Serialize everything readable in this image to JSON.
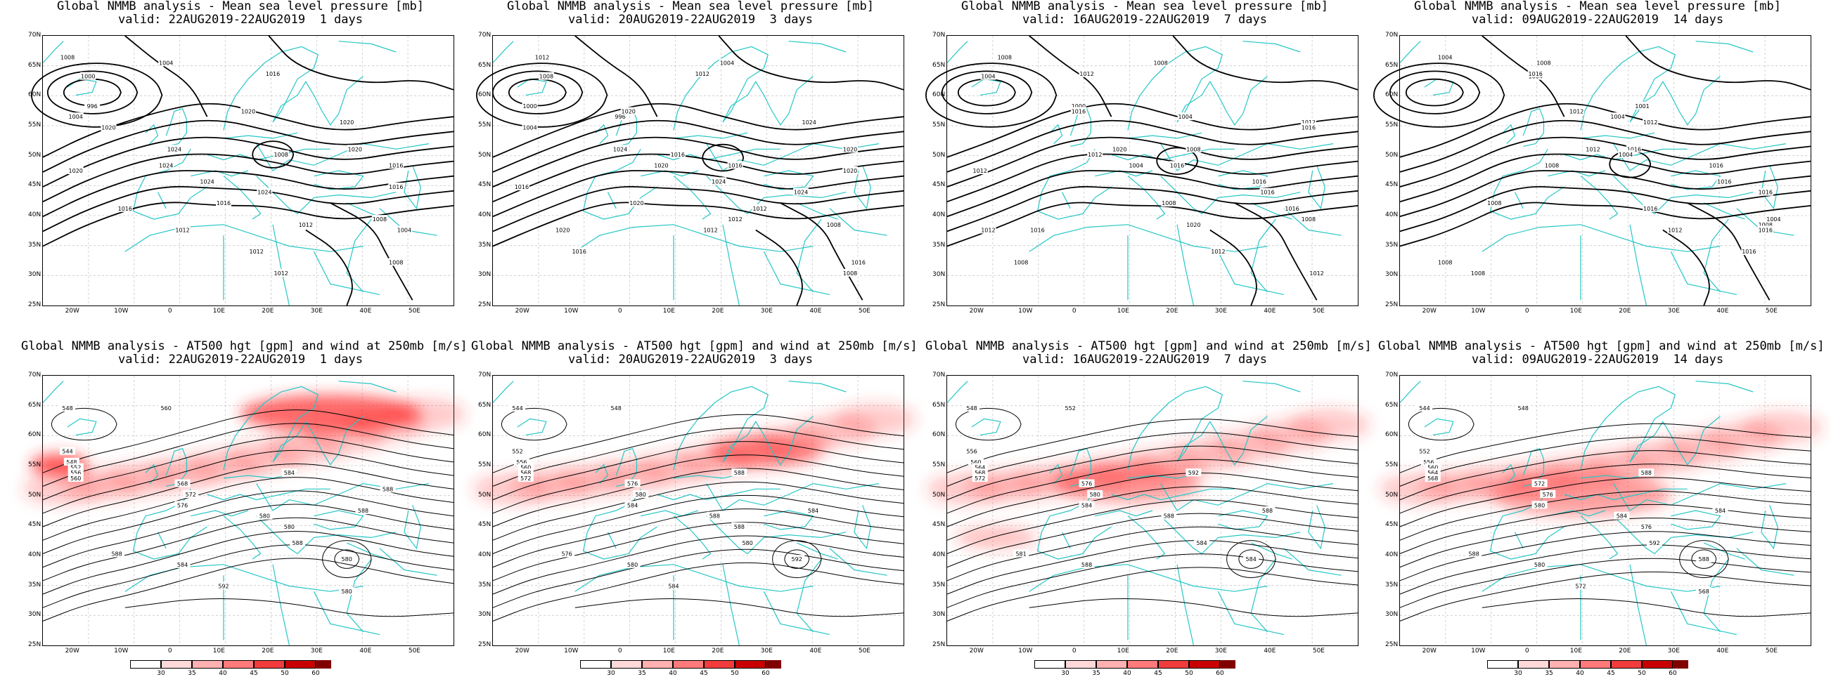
{
  "rows": [
    {
      "kind": "mslp",
      "panels": [
        {
          "title1": "Global NMMB analysis - Mean sea level pressure [mb]",
          "title2": "valid: 22AUG2019-22AUG2019  1 days",
          "labels": [
            "1008",
            "1000",
            "996",
            "1004",
            "1004",
            "1016",
            "1020",
            "1024",
            "1024",
            "1024",
            "1024",
            "1020",
            "1020",
            "1016",
            "1008",
            "1016",
            "1012",
            "1012",
            "1016",
            "1012",
            "1008",
            "1012",
            "1008",
            "1004",
            "1020",
            "1020",
            "1016"
          ]
        },
        {
          "title1": "Global NMMB analysis - Mean sea level pressure [mb]",
          "title2": "valid: 20AUG2019-22AUG2019  3 days",
          "labels": [
            "1012",
            "1008",
            "1000",
            "996",
            "1004",
            "1012",
            "1020",
            "1024",
            "1020",
            "1024",
            "1024",
            "1024",
            "1020",
            "1016",
            "1016",
            "1020",
            "1012",
            "1016",
            "1012",
            "1008",
            "1012",
            "1008",
            "1016",
            "1020",
            "1004",
            "1020",
            "1016"
          ]
        },
        {
          "title1": "Global NMMB analysis - Mean sea level pressure [mb]",
          "title2": "valid: 16AUG2019-22AUG2019  7 days",
          "labels": [
            "1008",
            "1004",
            "1000",
            "1004",
            "1008",
            "1012",
            "1016",
            "1020",
            "1016",
            "1016",
            "1016",
            "1012",
            "1008",
            "1004",
            "1012",
            "1008",
            "1016",
            "1012",
            "1016",
            "1020",
            "1008",
            "1012",
            "1008",
            "1012",
            "1016",
            "1012"
          ]
        },
        {
          "title1": "Global NMMB analysis - Mean sea level pressure [mb]",
          "title2": "valid: 09AUG2019-22AUG2019  14 days",
          "labels": [
            "1004",
            "1004",
            "1001",
            "1004",
            "1008",
            "1016",
            "1012",
            "1016",
            "1016",
            "1016",
            "1016",
            "1012",
            "1012",
            "1008",
            "1004",
            "1008",
            "1012",
            "1016",
            "1016",
            "1008",
            "1004",
            "1008",
            "1008",
            "1016"
          ]
        }
      ]
    },
    {
      "kind": "at500",
      "panels": [
        {
          "title1": "Global NMMB analysis - AT500 hgt [gpm] and wind at 250mb [m/s]",
          "title2": "valid: 22AUG2019-22AUG2019  1 days",
          "labels": [
            "548",
            "560",
            "544",
            "548",
            "552",
            "556",
            "560",
            "568",
            "572",
            "576",
            "580",
            "584",
            "588",
            "588",
            "580",
            "584",
            "588",
            "592",
            "580",
            "580",
            "588"
          ]
        },
        {
          "title1": "Global NMMB analysis - AT500 hgt [gpm] and wind at 250mb [m/s]",
          "title2": "valid: 20AUG2019-22AUG2019  3 days",
          "labels": [
            "544",
            "548",
            "552",
            "556",
            "560",
            "568",
            "572",
            "576",
            "580",
            "584",
            "588",
            "588",
            "580",
            "584",
            "592",
            "580",
            "576",
            "584",
            "588"
          ]
        },
        {
          "title1": "Global NMMB analysis - AT500 hgt [gpm] and wind at 250mb [m/s]",
          "title2": "valid: 16AUG2019-22AUG2019  7 days",
          "labels": [
            "548",
            "552",
            "556",
            "560",
            "564",
            "568",
            "572",
            "576",
            "580",
            "584",
            "588",
            "592",
            "584",
            "588",
            "584",
            "588",
            "581"
          ]
        },
        {
          "title1": "Global NMMB analysis - AT500 hgt [gpm] and wind at 250mb [m/s]",
          "title2": "valid: 09AUG2019-22AUG2019  14 days",
          "labels": [
            "544",
            "548",
            "552",
            "556",
            "560",
            "564",
            "568",
            "572",
            "576",
            "580",
            "584",
            "588",
            "592",
            "584",
            "588",
            "580",
            "588",
            "572",
            "576",
            "568"
          ]
        }
      ]
    }
  ],
  "lat_ticks": [
    "70N",
    "65N",
    "60N",
    "55N",
    "50N",
    "45N",
    "40N",
    "35N",
    "30N",
    "25N"
  ],
  "lon_ticks": [
    "20W",
    "10W",
    "0",
    "10E",
    "20E",
    "30E",
    "40E",
    "50E"
  ],
  "colorbar": {
    "labels": [
      "30",
      "35",
      "40",
      "45",
      "50",
      "60"
    ],
    "colors": [
      "#ffffff",
      "#ffd9d9",
      "#ffb0b0",
      "#ff7a7a",
      "#f03c3c",
      "#c80000",
      "#800000"
    ]
  },
  "colors": {
    "coast": "#26c6c6",
    "isobar": "#000000",
    "jet": "#ff2a2a",
    "grid": "#c8c8c8"
  }
}
